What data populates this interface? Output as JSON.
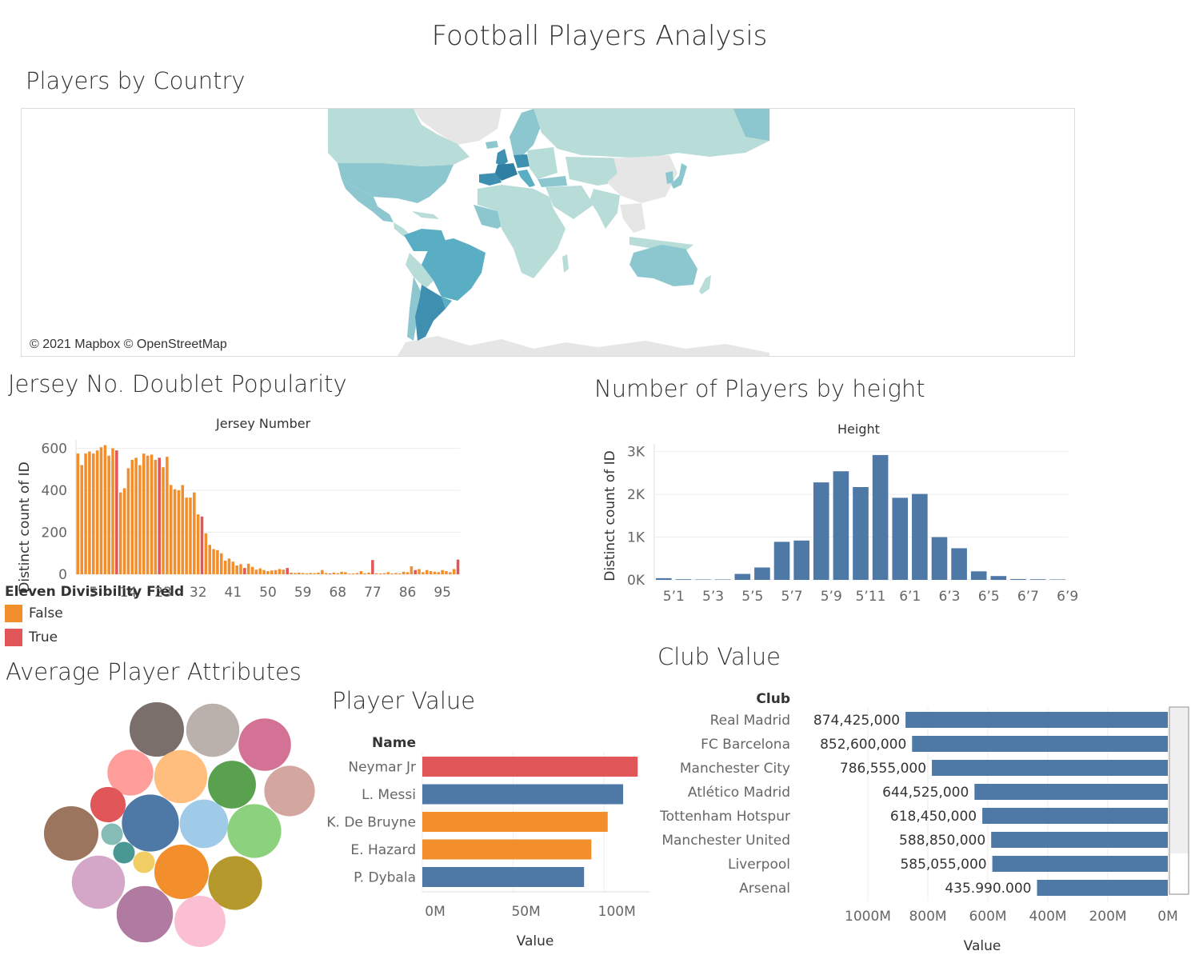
{
  "dashboard": {
    "title": "Football Players Analysis",
    "sections": {
      "map": "Players by Country",
      "jersey": "Jersey No. Doublet Popularity",
      "height": "Number of Players by height",
      "attributes": "Average Player Attributes",
      "player_value": "Player Value",
      "club_value": "Club Value"
    },
    "map_credit": "© 2021 Mapbox © OpenStreetMap"
  },
  "colors": {
    "orange": "#f28e2b",
    "red": "#e15759",
    "blue": "#4e79a7",
    "map_low": "#b8dcd8",
    "map_mid": "#8cc7d0",
    "map_high": "#5aaec4",
    "map_top": "#3f8fb0",
    "map_none": "#e6e6e6"
  },
  "legend": {
    "title": "Eleven Divisibility Field",
    "items": [
      {
        "label": "False",
        "color": "#f28e2b"
      },
      {
        "label": "True",
        "color": "#e15759"
      }
    ]
  },
  "chart_data": [
    {
      "id": "jersey",
      "type": "bar",
      "title": "Jersey Number",
      "ylabel": "Distinct count of ID",
      "ylim": [
        0,
        640
      ],
      "yticks": [
        0,
        200,
        400,
        600
      ],
      "xticks": [
        5,
        14,
        23,
        32,
        41,
        50,
        59,
        68,
        77,
        86,
        95
      ],
      "x": [
        1,
        2,
        3,
        4,
        5,
        6,
        7,
        8,
        9,
        10,
        11,
        12,
        13,
        14,
        15,
        16,
        17,
        18,
        19,
        20,
        21,
        22,
        23,
        24,
        25,
        26,
        27,
        28,
        29,
        30,
        31,
        32,
        33,
        34,
        35,
        36,
        37,
        38,
        39,
        40,
        41,
        42,
        43,
        44,
        45,
        46,
        47,
        48,
        49,
        50,
        51,
        52,
        53,
        54,
        55,
        56,
        57,
        58,
        59,
        60,
        61,
        62,
        63,
        64,
        65,
        66,
        67,
        68,
        69,
        70,
        71,
        72,
        73,
        74,
        75,
        76,
        77,
        78,
        79,
        80,
        81,
        82,
        83,
        84,
        85,
        86,
        87,
        88,
        89,
        90,
        91,
        92,
        93,
        94,
        95,
        96,
        97,
        98,
        99
      ],
      "values": [
        575,
        520,
        575,
        585,
        575,
        590,
        605,
        615,
        565,
        600,
        590,
        390,
        410,
        505,
        545,
        555,
        520,
        575,
        565,
        570,
        545,
        555,
        510,
        560,
        425,
        405,
        400,
        425,
        365,
        365,
        390,
        285,
        275,
        195,
        140,
        120,
        115,
        100,
        65,
        75,
        60,
        42,
        48,
        30,
        50,
        35,
        22,
        28,
        20,
        15,
        18,
        20,
        25,
        22,
        30,
        8,
        6,
        8,
        6,
        4,
        6,
        5,
        8,
        20,
        6,
        4,
        8,
        5,
        12,
        10,
        3,
        4,
        6,
        15,
        5,
        8,
        68,
        5,
        4,
        5,
        10,
        4,
        6,
        4,
        12,
        10,
        38,
        20,
        25,
        10,
        20,
        15,
        12,
        10,
        20,
        15,
        10,
        25,
        70
      ],
      "legend_field": "Eleven Divisibility Field"
    },
    {
      "id": "height",
      "type": "bar",
      "title": "Height",
      "ylabel": "Distinct count of ID",
      "ylim": [
        0,
        3000
      ],
      "yticks": [
        0,
        1000,
        2000,
        3000
      ],
      "ytick_labels": [
        "0K",
        "1K",
        "2K",
        "3K"
      ],
      "categories": [
        "5'1",
        "5'2",
        "5'3",
        "5'4",
        "5'5",
        "5'6",
        "5'7",
        "5'8",
        "5'9",
        "5'10",
        "5'11",
        "6'0",
        "6'1",
        "6'2",
        "6'3",
        "6'4",
        "6'5",
        "6'6",
        "6'7",
        "6'8",
        "6'9"
      ],
      "xtick_labels": [
        "5’1",
        "5’3",
        "5’5",
        "5’7",
        "5’9",
        "5’11",
        "6’1",
        "6’3",
        "6’5",
        "6’7",
        "6’9"
      ],
      "values": [
        40,
        15,
        10,
        10,
        140,
        290,
        890,
        920,
        2280,
        2540,
        2170,
        2920,
        1920,
        2010,
        1000,
        740,
        200,
        90,
        20,
        15,
        10
      ]
    },
    {
      "id": "player_value",
      "type": "bar",
      "orientation": "horizontal",
      "title": "Name",
      "xlabel": "Value",
      "xlim": [
        0,
        125000000
      ],
      "xticks": [
        0,
        50000000,
        100000000
      ],
      "xtick_labels": [
        "0M",
        "50M",
        "100M"
      ],
      "categories": [
        "Neymar Jr",
        "L. Messi",
        "K. De Bruyne",
        "E. Hazard",
        "P. Dybala"
      ],
      "values": [
        118500000,
        110500000,
        102000000,
        93000000,
        89000000
      ],
      "colors": [
        "#e15759",
        "#4e79a7",
        "#f28e2b",
        "#f28e2b",
        "#4e79a7"
      ]
    },
    {
      "id": "club_value",
      "type": "bar",
      "orientation": "horizontal",
      "title": "Club",
      "xlabel": "Value",
      "xlim": [
        0,
        1200000000
      ],
      "xticks": [
        1000000000,
        800000000,
        600000000,
        400000000,
        200000000,
        0
      ],
      "xtick_labels": [
        "1000M",
        "800M",
        "600M",
        "400M",
        "200M",
        "0M"
      ],
      "categories": [
        "Real Madrid",
        "FC Barcelona",
        "Manchester City",
        "Atlético Madrid",
        "Tottenham Hotspur",
        "Manchester United",
        "Liverpool",
        "Arsenal"
      ],
      "values": [
        874425000,
        852600000,
        786555000,
        644525000,
        618450000,
        588850000,
        585055000,
        435990000
      ],
      "value_labels": [
        "874,425,000",
        "852,600,000",
        "786,555,000",
        "644,525,000",
        "618,450,000",
        "588,850,000",
        "585,055,000",
        "435.990.000"
      ]
    },
    {
      "id": "attributes",
      "type": "bubble",
      "bubbles": [
        {
          "color": "#7b6f6b",
          "size": 0.83
        },
        {
          "color": "#bab0ac",
          "size": 0.81
        },
        {
          "color": "#d37295",
          "size": 0.8
        },
        {
          "color": "#ff9d9a",
          "size": 0.7
        },
        {
          "color": "#ffbe7d",
          "size": 0.81
        },
        {
          "color": "#59a14f",
          "size": 0.73
        },
        {
          "color": "#d4a6a0",
          "size": 0.77
        },
        {
          "color": "#e15759",
          "size": 0.54
        },
        {
          "color": "#4e79a7",
          "size": 0.87
        },
        {
          "color": "#a0cbe8",
          "size": 0.74
        },
        {
          "color": "#8cd17d",
          "size": 0.82
        },
        {
          "color": "#9c755f",
          "size": 0.83
        },
        {
          "color": "#86bcb6",
          "size": 0.33
        },
        {
          "color": "#499894",
          "size": 0.33
        },
        {
          "color": "#f1ce63",
          "size": 0.33
        },
        {
          "color": "#f28e2b",
          "size": 0.83
        },
        {
          "color": "#d4a6c8",
          "size": 0.81
        },
        {
          "color": "#b6992d",
          "size": 0.82
        },
        {
          "color": "#b07aa1",
          "size": 0.86
        },
        {
          "color": "#fabfd2",
          "size": 0.78
        }
      ]
    }
  ]
}
